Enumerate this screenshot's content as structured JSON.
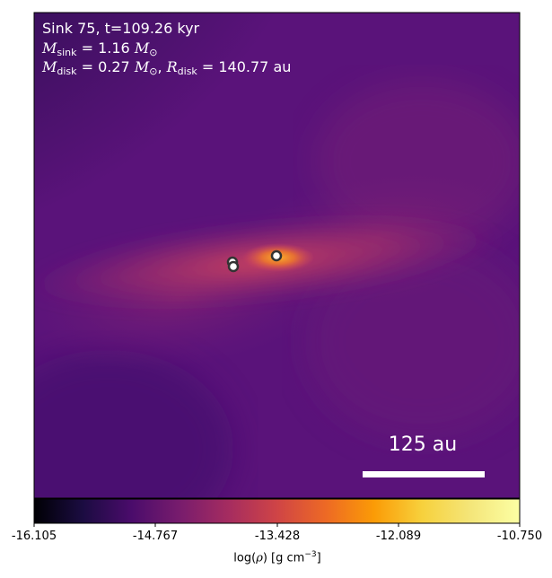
{
  "header": {
    "sink_line": "Sink 75, t=109.26 kyr",
    "msink_value": "1.16",
    "mdisk_value": "0.27",
    "rdisk_value": "140.77",
    "mass_symbol": "M",
    "sub_sink": "sink",
    "sub_disk": "disk",
    "radius_symbol": "R",
    "sun_symbol": "⊙",
    "au_unit": "au"
  },
  "scale_bar": {
    "label": "125 au",
    "length_au": 125
  },
  "colorbar": {
    "ticks": [
      "-16.105",
      "-14.767",
      "-13.428",
      "-12.089",
      "-10.750"
    ],
    "label_prefix": "log(",
    "label_rho": "ρ",
    "label_suffix": ") [g cm",
    "label_exp": "−3",
    "label_close": "]",
    "colormap": "inferno",
    "range": [
      -16.105,
      -10.75
    ]
  },
  "sinks": {
    "count": 3
  },
  "colors": {
    "background": "#5a137a",
    "disk": "#c23d62",
    "core": "#f68d1f",
    "marker_fill": "#ffffff",
    "marker_edge": "#333333"
  }
}
